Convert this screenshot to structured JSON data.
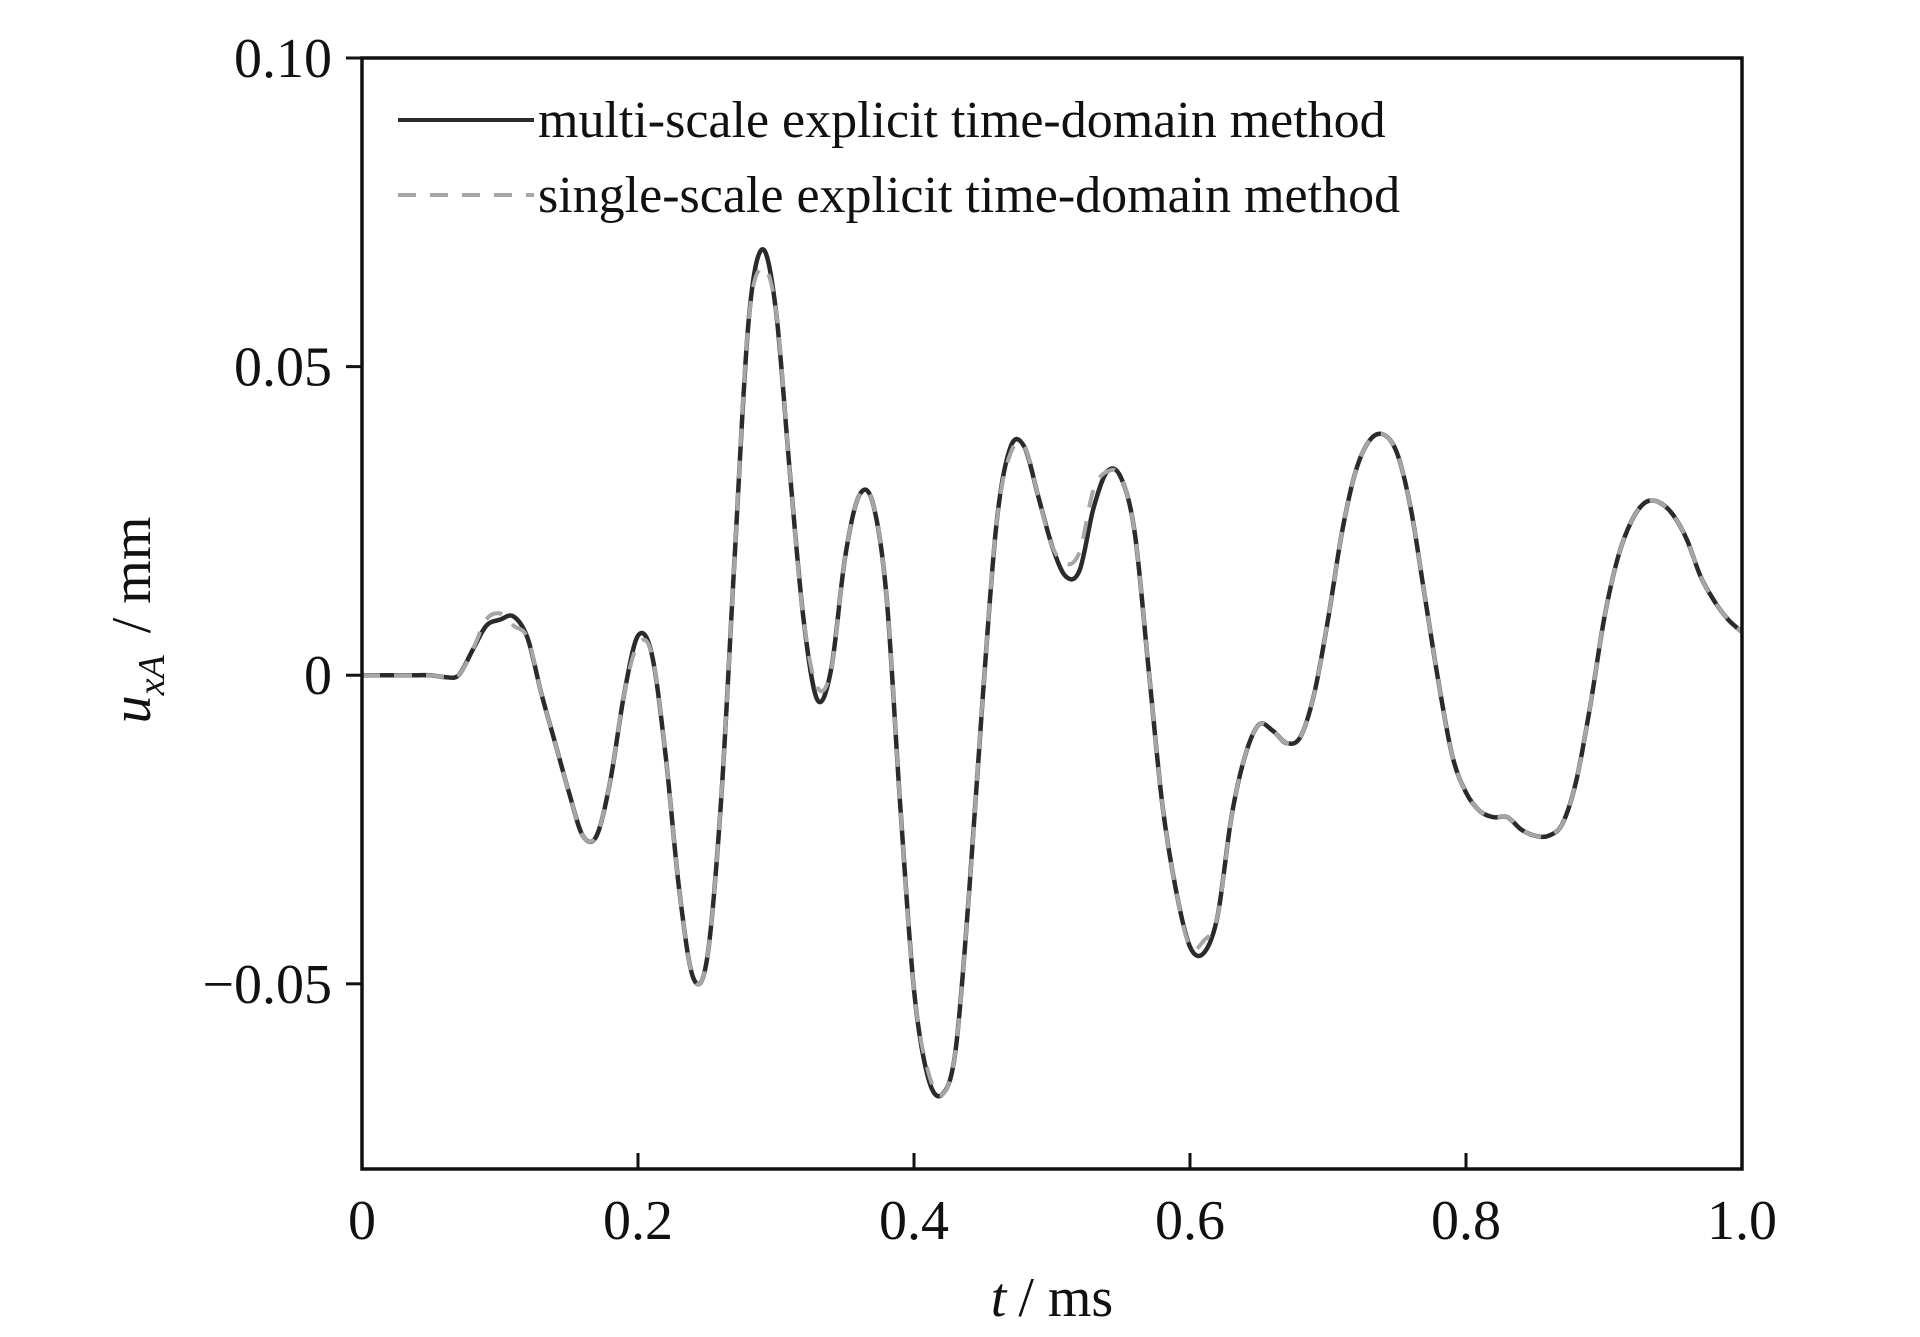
{
  "chart_data": {
    "type": "line",
    "x_label": {
      "symbol": "t",
      "unit": "/ ms"
    },
    "y_label": {
      "symbol": "u",
      "subscript": "xA",
      "unit": "/ mm"
    },
    "x": [
      0,
      0.01,
      0.02,
      0.03,
      0.04,
      0.05,
      0.06,
      0.07,
      0.08,
      0.09,
      0.1,
      0.11,
      0.12,
      0.13,
      0.14,
      0.15,
      0.16,
      0.17,
      0.18,
      0.19,
      0.2,
      0.21,
      0.22,
      0.23,
      0.24,
      0.25,
      0.26,
      0.27,
      0.28,
      0.29,
      0.3,
      0.31,
      0.32,
      0.33,
      0.34,
      0.35,
      0.36,
      0.37,
      0.38,
      0.39,
      0.4,
      0.41,
      0.42,
      0.43,
      0.44,
      0.45,
      0.46,
      0.47,
      0.48,
      0.49,
      0.5,
      0.51,
      0.52,
      0.53,
      0.54,
      0.55,
      0.56,
      0.57,
      0.58,
      0.59,
      0.6,
      0.61,
      0.62,
      0.63,
      0.64,
      0.65,
      0.66,
      0.67,
      0.68,
      0.69,
      0.7,
      0.71,
      0.72,
      0.73,
      0.74,
      0.75,
      0.76,
      0.77,
      0.78,
      0.79,
      0.8,
      0.81,
      0.82,
      0.83,
      0.84,
      0.85,
      0.86,
      0.87,
      0.88,
      0.89,
      0.9,
      0.91,
      0.92,
      0.93,
      0.94,
      0.95,
      0.96,
      0.97,
      0.98,
      0.99,
      1.0
    ],
    "series": [
      {
        "name": "multi-scale explicit time-domain method",
        "color": "#2b2b2b",
        "dash": false,
        "values": [
          0,
          0,
          0,
          0,
          0,
          0,
          -0.0003,
          0,
          0.004,
          0.008,
          0.009,
          0.0095,
          0.006,
          -0.003,
          -0.011,
          -0.019,
          -0.026,
          -0.026,
          -0.017,
          -0.003,
          0.0064,
          0.0034,
          -0.013,
          -0.035,
          -0.049,
          -0.046,
          -0.021,
          0.019,
          0.057,
          0.069,
          0.059,
          0.033,
          0.009,
          -0.004,
          0.001,
          0.019,
          0.029,
          0.028,
          0.013,
          -0.021,
          -0.051,
          -0.065,
          -0.068,
          -0.061,
          -0.035,
          -0.003,
          0.025,
          0.037,
          0.037,
          0.029,
          0.021,
          0.016,
          0.017,
          0.027,
          0.033,
          0.032,
          0.023,
          0.001,
          -0.021,
          -0.035,
          -0.044,
          -0.045,
          -0.039,
          -0.023,
          -0.013,
          -0.008,
          -0.009,
          -0.011,
          -0.01,
          -0.003,
          0.009,
          0.023,
          0.033,
          0.038,
          0.039,
          0.036,
          0.027,
          0.013,
          -0.001,
          -0.013,
          -0.019,
          -0.022,
          -0.023,
          -0.023,
          -0.025,
          -0.026,
          -0.026,
          -0.024,
          -0.017,
          -0.005,
          0.009,
          0.019,
          0.025,
          0.028,
          0.028,
          0.026,
          0.022,
          0.016,
          0.012,
          0.009,
          0.007
        ]
      },
      {
        "name": "single-scale explicit time-domain method",
        "color": "#a6a6a6",
        "dash": true,
        "values": [
          0,
          0,
          0,
          0,
          0,
          0,
          -0.0003,
          0,
          0.004,
          0.009,
          0.01,
          0.008,
          0.006,
          -0.003,
          -0.011,
          -0.019,
          -0.026,
          -0.026,
          -0.017,
          -0.003,
          0.005,
          0.0034,
          -0.013,
          -0.035,
          -0.049,
          -0.046,
          -0.021,
          0.019,
          0.057,
          0.066,
          0.059,
          0.033,
          0.009,
          -0.002,
          0.001,
          0.019,
          0.029,
          0.028,
          0.013,
          -0.021,
          -0.051,
          -0.064,
          -0.068,
          -0.061,
          -0.035,
          -0.003,
          0.025,
          0.036,
          0.037,
          0.029,
          0.021,
          0.018,
          0.02,
          0.03,
          0.033,
          0.032,
          0.023,
          0.001,
          -0.021,
          -0.035,
          -0.044,
          -0.043,
          -0.039,
          -0.023,
          -0.013,
          -0.008,
          -0.009,
          -0.011,
          -0.01,
          -0.003,
          0.009,
          0.023,
          0.033,
          0.038,
          0.039,
          0.036,
          0.027,
          0.013,
          -0.001,
          -0.013,
          -0.019,
          -0.022,
          -0.023,
          -0.023,
          -0.025,
          -0.026,
          -0.026,
          -0.024,
          -0.017,
          -0.005,
          0.009,
          0.019,
          0.025,
          0.028,
          0.028,
          0.026,
          0.022,
          0.016,
          0.012,
          0.009,
          0.007
        ]
      }
    ],
    "xlim": [
      0,
      1.0
    ],
    "xticks": [
      0,
      0.2,
      0.4,
      0.6,
      0.8,
      {
        "value": 1.0,
        "label": "1.0"
      }
    ],
    "ylim": [
      -0.08,
      0.1
    ],
    "yticks": [
      {
        "value": -0.05,
        "label": "−0.05"
      },
      0,
      0.05,
      {
        "value": 0.1,
        "label": "0.10"
      }
    ],
    "legend": "upper left"
  }
}
